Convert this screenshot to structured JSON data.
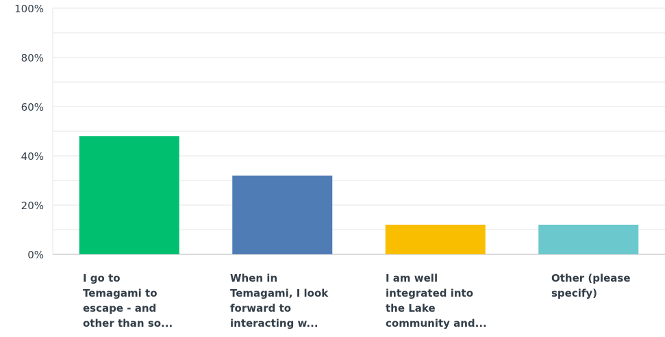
{
  "chart_data": {
    "type": "bar",
    "categories": [
      "I go to\nTemagami to\nescape - and\nother than so...",
      "When in\nTemagami, I look\nforward to\ninteracting w...",
      "I am well\nintegrated into\nthe Lake\ncommunity and...",
      "Other (please\nspecify)"
    ],
    "values": [
      48,
      32,
      12,
      12
    ],
    "colors": [
      "#00bf6f",
      "#507cb6",
      "#f9be00",
      "#6bc8cd"
    ],
    "y_ticks": [
      "0%",
      "20%",
      "40%",
      "60%",
      "80%",
      "100%"
    ],
    "ylim": [
      0,
      100
    ],
    "grid": true,
    "gridline_color": "#e5e5e5",
    "axis_color": "#b9b9b9",
    "text_color": "#333e48"
  }
}
